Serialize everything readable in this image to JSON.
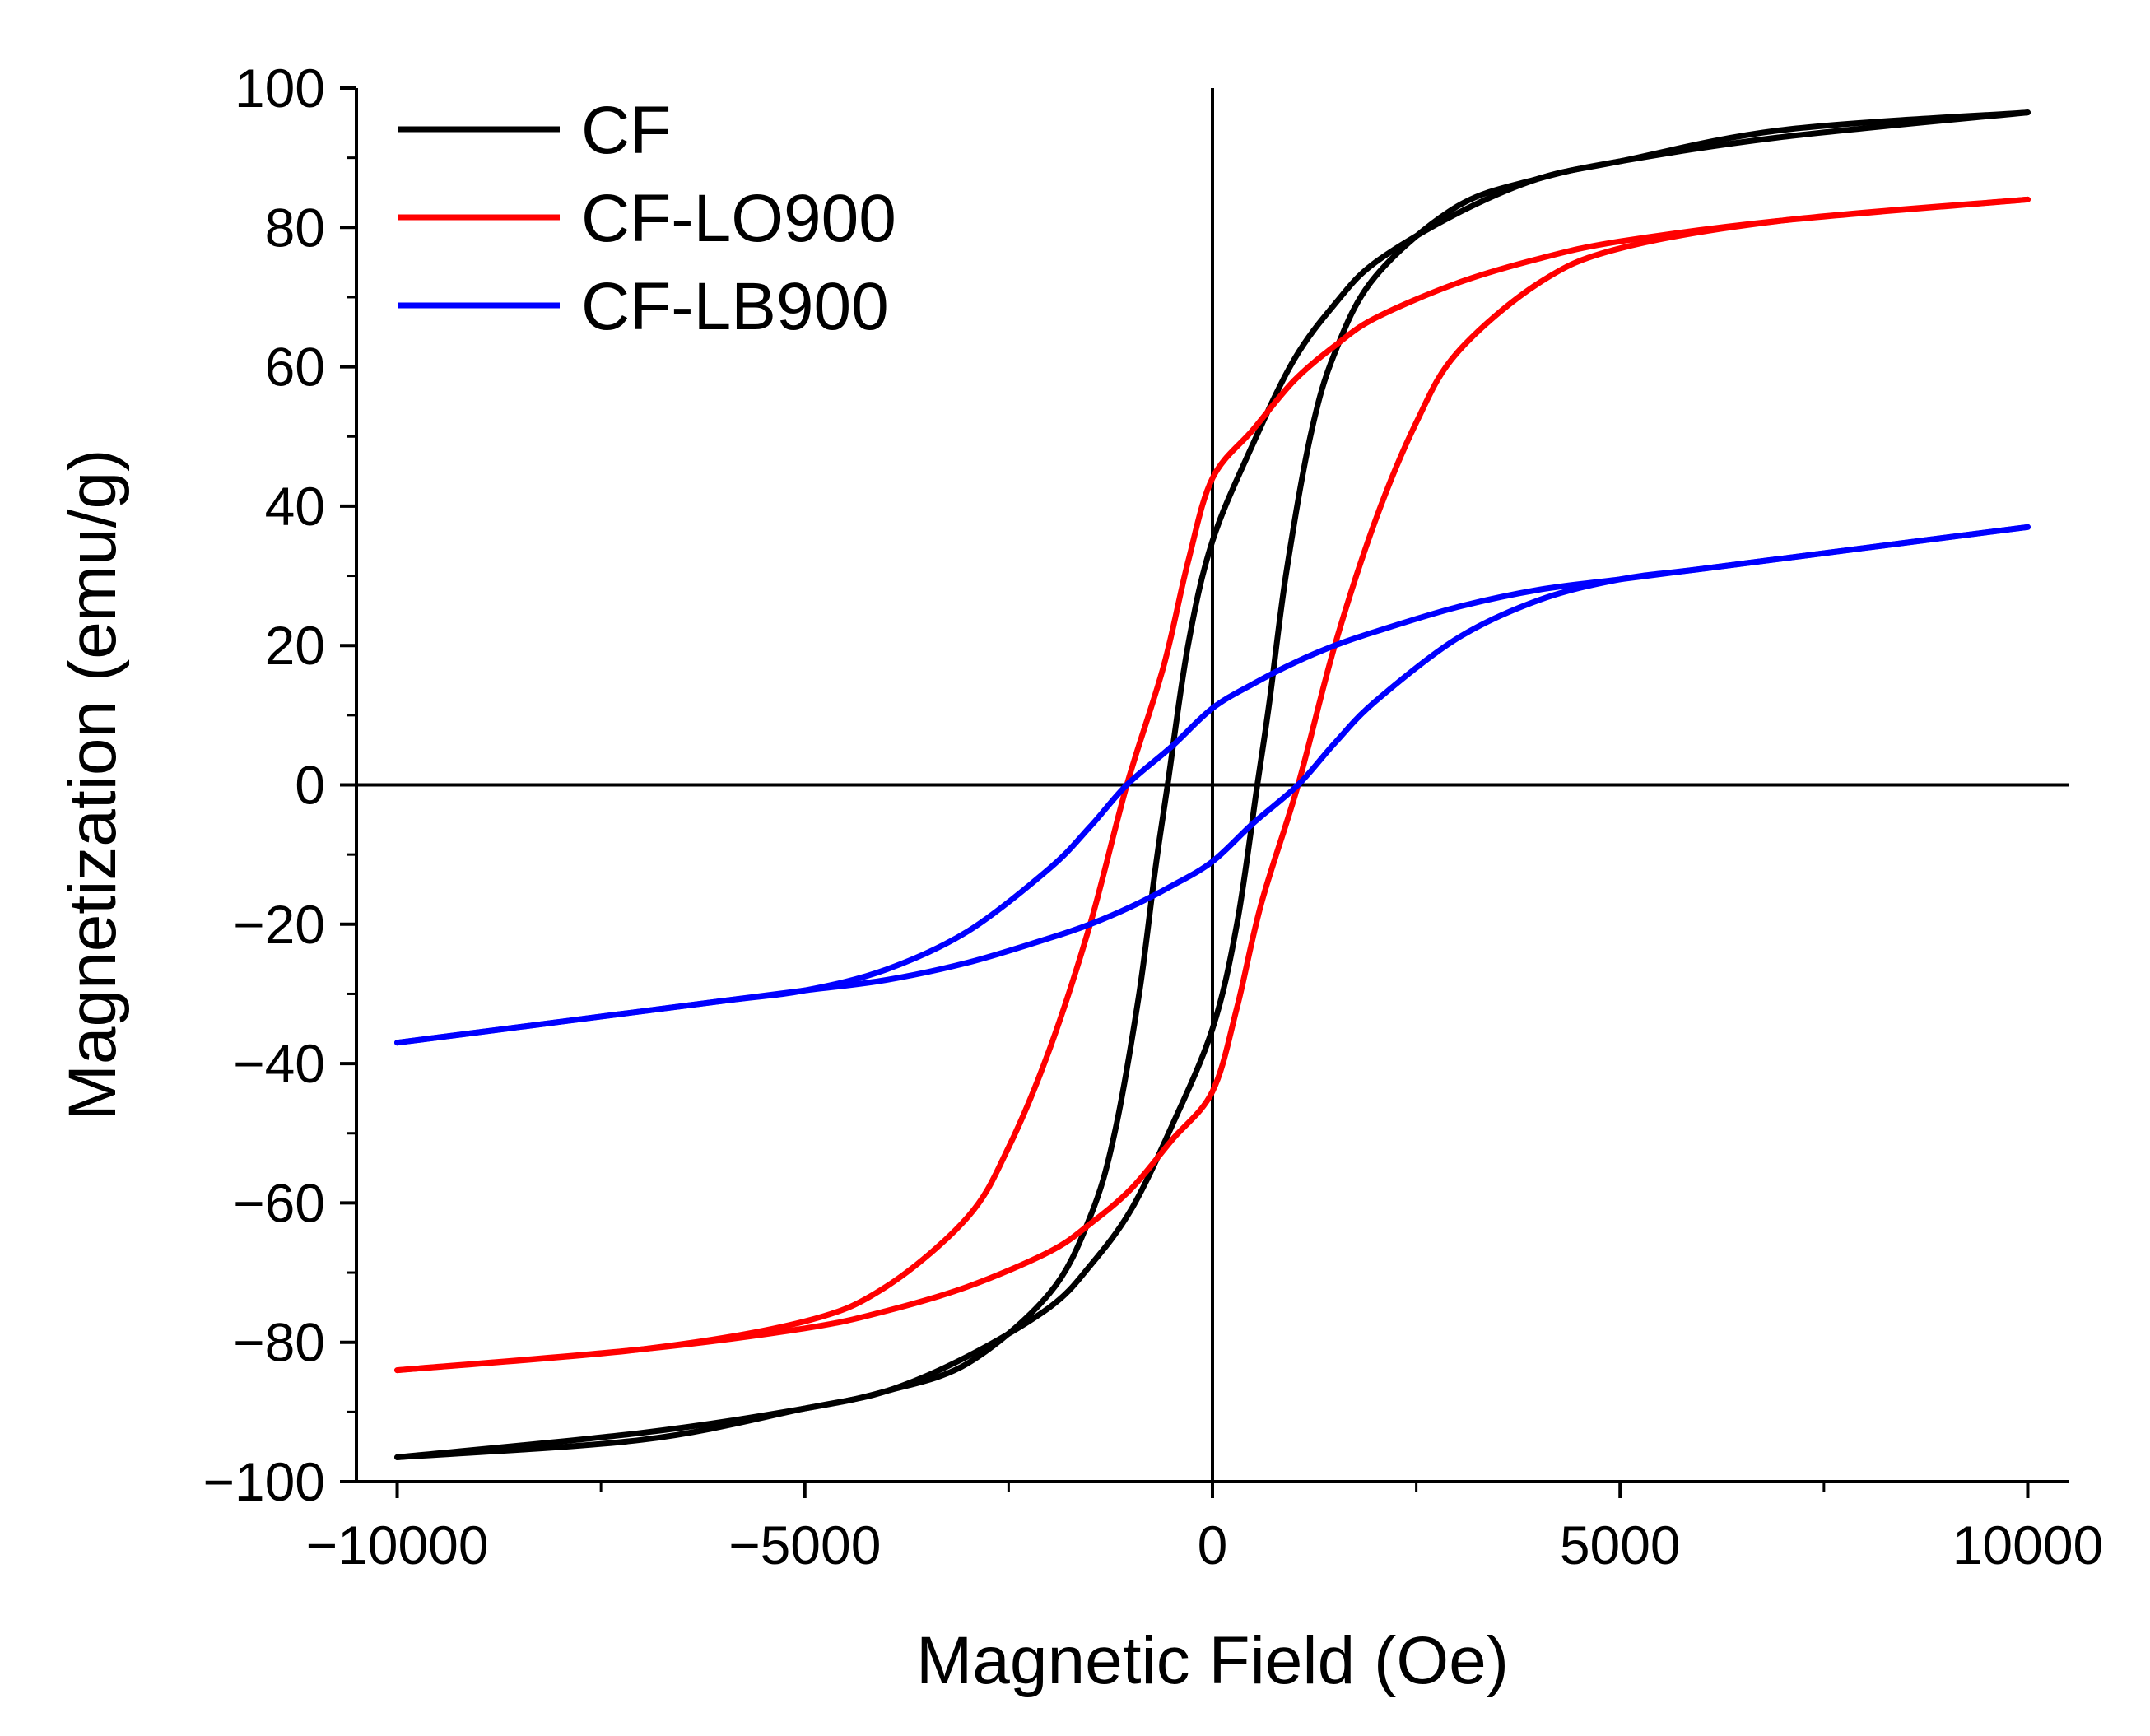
{
  "chart_data": {
    "type": "line",
    "title": "",
    "xlabel": "Magnetic Field (Oe)",
    "ylabel": "Magnetization (emu/g)",
    "xlim": [
      -10500,
      10500
    ],
    "ylim": [
      -100,
      100
    ],
    "xticks": [
      -10000,
      -5000,
      0,
      5000,
      10000
    ],
    "xtick_labels": [
      "−10000",
      "−5000",
      "0",
      "5000",
      "10000"
    ],
    "yticks": [
      -100,
      -80,
      -60,
      -40,
      -20,
      0,
      20,
      40,
      60,
      80,
      100
    ],
    "ytick_labels": [
      "−100",
      "−80",
      "−60",
      "−40",
      "−20",
      "0",
      "20",
      "40",
      "60",
      "80",
      "100"
    ],
    "zero_lines": true,
    "legend_position": "top-left",
    "series": [
      {
        "name": "CF",
        "color": "#000000",
        "saturation_emu_g": 96.5,
        "coercivity_oe": 550,
        "remanence_emu_g": 35,
        "descending_branch": [
          [
            10000,
            96.5
          ],
          [
            7000,
            94
          ],
          [
            5000,
            89.5
          ],
          [
            4000,
            87
          ],
          [
            3000,
            82
          ],
          [
            2000,
            75
          ],
          [
            1500,
            69
          ],
          [
            1000,
            61
          ],
          [
            500,
            49
          ],
          [
            0,
            35
          ],
          [
            -300,
            20
          ],
          [
            -550,
            0
          ],
          [
            -700,
            -12
          ],
          [
            -900,
            -30
          ],
          [
            -1200,
            -50
          ],
          [
            -1500,
            -62
          ],
          [
            -2000,
            -73
          ],
          [
            -3000,
            -83
          ],
          [
            -4000,
            -87
          ],
          [
            -5000,
            -89.5
          ],
          [
            -7000,
            -93
          ],
          [
            -10000,
            -96.5
          ]
        ],
        "ascending_branch": [
          [
            -10000,
            -96.5
          ],
          [
            -7000,
            -94
          ],
          [
            -5000,
            -89.5
          ],
          [
            -4000,
            -87
          ],
          [
            -3000,
            -82
          ],
          [
            -2000,
            -75
          ],
          [
            -1500,
            -69
          ],
          [
            -1000,
            -61
          ],
          [
            -500,
            -49
          ],
          [
            0,
            -35
          ],
          [
            300,
            -20
          ],
          [
            550,
            0
          ],
          [
            700,
            12
          ],
          [
            900,
            30
          ],
          [
            1200,
            50
          ],
          [
            1500,
            62
          ],
          [
            2000,
            73
          ],
          [
            3000,
            83
          ],
          [
            4000,
            87
          ],
          [
            5000,
            89.5
          ],
          [
            7000,
            93
          ],
          [
            10000,
            96.5
          ]
        ]
      },
      {
        "name": "CF-LO900",
        "color": "#ff0000",
        "saturation_emu_g": 84,
        "coercivity_oe": 1050,
        "remanence_emu_g": 44,
        "descending_branch": [
          [
            10000,
            84
          ],
          [
            7000,
            81
          ],
          [
            5000,
            78
          ],
          [
            4000,
            75.5
          ],
          [
            3000,
            72
          ],
          [
            2000,
            67
          ],
          [
            1500,
            63
          ],
          [
            1000,
            58
          ],
          [
            500,
            51
          ],
          [
            0,
            44
          ],
          [
            -300,
            32
          ],
          [
            -600,
            17
          ],
          [
            -1050,
            0
          ],
          [
            -1500,
            -20
          ],
          [
            -2000,
            -38
          ],
          [
            -2500,
            -52
          ],
          [
            -3000,
            -62
          ],
          [
            -4000,
            -72
          ],
          [
            -5000,
            -77
          ],
          [
            -7000,
            -81
          ],
          [
            -10000,
            -84
          ]
        ],
        "ascending_branch": [
          [
            -10000,
            -84
          ],
          [
            -7000,
            -81
          ],
          [
            -5000,
            -78
          ],
          [
            -4000,
            -75.5
          ],
          [
            -3000,
            -72
          ],
          [
            -2000,
            -67
          ],
          [
            -1500,
            -63
          ],
          [
            -1000,
            -58
          ],
          [
            -500,
            -51
          ],
          [
            0,
            -44
          ],
          [
            300,
            -32
          ],
          [
            600,
            -17
          ],
          [
            1050,
            0
          ],
          [
            1500,
            20
          ],
          [
            2000,
            38
          ],
          [
            2500,
            52
          ],
          [
            3000,
            62
          ],
          [
            4000,
            72
          ],
          [
            5000,
            77
          ],
          [
            7000,
            81
          ],
          [
            10000,
            84
          ]
        ]
      },
      {
        "name": "CF-LB900",
        "color": "#0000ff",
        "saturation_emu_g": 37,
        "coercivity_oe": 1050,
        "remanence_emu_g": 11,
        "descending_branch": [
          [
            10000,
            37
          ],
          [
            8000,
            34
          ],
          [
            6000,
            31
          ],
          [
            5000,
            29.5
          ],
          [
            4000,
            28
          ],
          [
            3000,
            25.5
          ],
          [
            2000,
            22
          ],
          [
            1500,
            20
          ],
          [
            1000,
            17.5
          ],
          [
            500,
            14.5
          ],
          [
            0,
            11
          ],
          [
            -500,
            5.5
          ],
          [
            -1050,
            0
          ],
          [
            -1500,
            -6
          ],
          [
            -2000,
            -12
          ],
          [
            -3000,
            -21
          ],
          [
            -4000,
            -26.5
          ],
          [
            -5000,
            -29.5
          ],
          [
            -6000,
            -31
          ],
          [
            -8000,
            -34
          ],
          [
            -10000,
            -37
          ]
        ],
        "ascending_branch": [
          [
            -10000,
            -37
          ],
          [
            -8000,
            -34
          ],
          [
            -6000,
            -31
          ],
          [
            -5000,
            -29.5
          ],
          [
            -4000,
            -28
          ],
          [
            -3000,
            -25.5
          ],
          [
            -2000,
            -22
          ],
          [
            -1500,
            -20
          ],
          [
            -1000,
            -17.5
          ],
          [
            -500,
            -14.5
          ],
          [
            0,
            -11
          ],
          [
            500,
            -5.5
          ],
          [
            1050,
            0
          ],
          [
            1500,
            6
          ],
          [
            2000,
            12
          ],
          [
            3000,
            21
          ],
          [
            4000,
            26.5
          ],
          [
            5000,
            29.5
          ],
          [
            6000,
            31
          ],
          [
            8000,
            34
          ],
          [
            10000,
            37
          ]
        ]
      }
    ]
  }
}
